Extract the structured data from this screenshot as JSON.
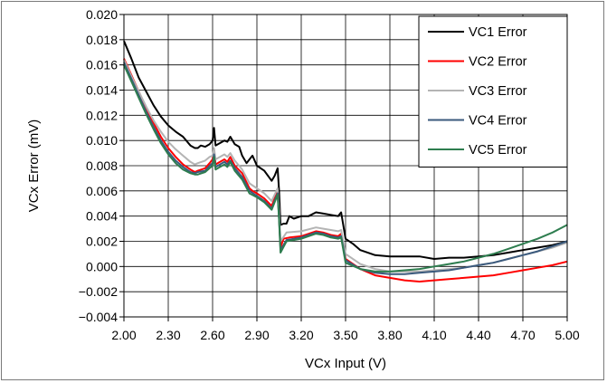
{
  "chart_data": {
    "type": "line",
    "title": "",
    "xlabel": "VCx Input (V)",
    "ylabel": "VCx Error (mV)",
    "xlim": [
      2.0,
      5.0
    ],
    "ylim": [
      -0.004,
      0.02
    ],
    "x_ticks": [
      "2.00",
      "2.30",
      "2.60",
      "2.90",
      "3.20",
      "3.50",
      "3.80",
      "4.10",
      "4.40",
      "4.70",
      "5.00"
    ],
    "y_ticks": [
      "−0.004",
      "−0.002",
      "0.000",
      "0.002",
      "0.004",
      "0.006",
      "0.008",
      "0.010",
      "0.012",
      "0.014",
      "0.016",
      "0.018",
      "0.020"
    ],
    "grid": true,
    "legend_position": "top-right",
    "series": [
      {
        "name": "VC1 Error",
        "color": "#000000",
        "points": [
          [
            2.0,
            0.0179
          ],
          [
            2.05,
            0.0165
          ],
          [
            2.1,
            0.015
          ],
          [
            2.15,
            0.0139
          ],
          [
            2.2,
            0.0128
          ],
          [
            2.25,
            0.0119
          ],
          [
            2.3,
            0.0112
          ],
          [
            2.35,
            0.0107
          ],
          [
            2.4,
            0.0103
          ],
          [
            2.45,
            0.0096
          ],
          [
            2.48,
            0.0094
          ],
          [
            2.5,
            0.0094
          ],
          [
            2.52,
            0.0096
          ],
          [
            2.55,
            0.0095
          ],
          [
            2.58,
            0.0097
          ],
          [
            2.6,
            0.01
          ],
          [
            2.61,
            0.011
          ],
          [
            2.62,
            0.0096
          ],
          [
            2.65,
            0.0098
          ],
          [
            2.68,
            0.01
          ],
          [
            2.7,
            0.0099
          ],
          [
            2.72,
            0.0103
          ],
          [
            2.75,
            0.0097
          ],
          [
            2.78,
            0.0095
          ],
          [
            2.8,
            0.0088
          ],
          [
            2.83,
            0.0082
          ],
          [
            2.85,
            0.0085
          ],
          [
            2.87,
            0.0088
          ],
          [
            2.9,
            0.008
          ],
          [
            2.95,
            0.0076
          ],
          [
            3.0,
            0.0068
          ],
          [
            3.02,
            0.0072
          ],
          [
            3.04,
            0.0078
          ],
          [
            3.05,
            0.006
          ],
          [
            3.06,
            0.0033
          ],
          [
            3.08,
            0.0034
          ],
          [
            3.1,
            0.0034
          ],
          [
            3.12,
            0.004
          ],
          [
            3.15,
            0.0038
          ],
          [
            3.2,
            0.004
          ],
          [
            3.25,
            0.004
          ],
          [
            3.3,
            0.0043
          ],
          [
            3.35,
            0.0042
          ],
          [
            3.4,
            0.0041
          ],
          [
            3.45,
            0.004
          ],
          [
            3.47,
            0.0043
          ],
          [
            3.5,
            0.0022
          ],
          [
            3.55,
            0.0018
          ],
          [
            3.6,
            0.0013
          ],
          [
            3.7,
            0.0009
          ],
          [
            3.8,
            0.0008
          ],
          [
            3.9,
            0.0008
          ],
          [
            4.0,
            0.0008
          ],
          [
            4.1,
            0.0006
          ],
          [
            4.2,
            0.0007
          ],
          [
            4.3,
            0.0007
          ],
          [
            4.4,
            0.0008
          ],
          [
            4.5,
            0.0009
          ],
          [
            4.6,
            0.0011
          ],
          [
            4.7,
            0.0013
          ],
          [
            4.8,
            0.0015
          ],
          [
            4.9,
            0.0017
          ],
          [
            5.0,
            0.002
          ]
        ]
      },
      {
        "name": "VC2 Error",
        "color": "#ff0000",
        "points": [
          [
            2.0,
            0.0165
          ],
          [
            2.05,
            0.0152
          ],
          [
            2.1,
            0.0139
          ],
          [
            2.15,
            0.0126
          ],
          [
            2.2,
            0.0114
          ],
          [
            2.25,
            0.0103
          ],
          [
            2.3,
            0.0094
          ],
          [
            2.35,
            0.0087
          ],
          [
            2.4,
            0.0081
          ],
          [
            2.45,
            0.0077
          ],
          [
            2.48,
            0.0075
          ],
          [
            2.5,
            0.0076
          ],
          [
            2.55,
            0.0078
          ],
          [
            2.58,
            0.0082
          ],
          [
            2.6,
            0.0085
          ],
          [
            2.61,
            0.0093
          ],
          [
            2.62,
            0.0081
          ],
          [
            2.65,
            0.0083
          ],
          [
            2.68,
            0.0085
          ],
          [
            2.7,
            0.0083
          ],
          [
            2.72,
            0.0087
          ],
          [
            2.75,
            0.008
          ],
          [
            2.8,
            0.0074
          ],
          [
            2.85,
            0.0062
          ],
          [
            2.87,
            0.006
          ],
          [
            2.9,
            0.0058
          ],
          [
            2.95,
            0.0054
          ],
          [
            3.0,
            0.0048
          ],
          [
            3.04,
            0.006
          ],
          [
            3.05,
            0.004
          ],
          [
            3.06,
            0.0015
          ],
          [
            3.08,
            0.0022
          ],
          [
            3.12,
            0.0023
          ],
          [
            3.2,
            0.0024
          ],
          [
            3.3,
            0.0028
          ],
          [
            3.35,
            0.0027
          ],
          [
            3.4,
            0.0025
          ],
          [
            3.45,
            0.0024
          ],
          [
            3.47,
            0.0026
          ],
          [
            3.5,
            0.0006
          ],
          [
            3.6,
            -0.0002
          ],
          [
            3.7,
            -0.0007
          ],
          [
            3.8,
            -0.0009
          ],
          [
            3.9,
            -0.0011
          ],
          [
            4.0,
            -0.0012
          ],
          [
            4.1,
            -0.0011
          ],
          [
            4.2,
            -0.001
          ],
          [
            4.3,
            -0.0009
          ],
          [
            4.4,
            -0.0008
          ],
          [
            4.5,
            -0.0007
          ],
          [
            4.6,
            -0.0005
          ],
          [
            4.7,
            -0.0003
          ],
          [
            4.8,
            -0.0001
          ],
          [
            4.9,
            0.0001
          ],
          [
            5.0,
            0.0004
          ]
        ]
      },
      {
        "name": "VC3 Error",
        "color": "#b4b4b4",
        "points": [
          [
            2.0,
            0.0164
          ],
          [
            2.05,
            0.0151
          ],
          [
            2.1,
            0.0139
          ],
          [
            2.15,
            0.0127
          ],
          [
            2.2,
            0.0116
          ],
          [
            2.25,
            0.0107
          ],
          [
            2.3,
            0.0099
          ],
          [
            2.35,
            0.0093
          ],
          [
            2.4,
            0.0088
          ],
          [
            2.45,
            0.0083
          ],
          [
            2.48,
            0.0081
          ],
          [
            2.5,
            0.0082
          ],
          [
            2.55,
            0.0084
          ],
          [
            2.58,
            0.0087
          ],
          [
            2.6,
            0.0088
          ],
          [
            2.61,
            0.0094
          ],
          [
            2.62,
            0.0085
          ],
          [
            2.65,
            0.0087
          ],
          [
            2.68,
            0.0089
          ],
          [
            2.7,
            0.0087
          ],
          [
            2.72,
            0.009
          ],
          [
            2.75,
            0.0084
          ],
          [
            2.8,
            0.0077
          ],
          [
            2.85,
            0.0066
          ],
          [
            2.9,
            0.0062
          ],
          [
            2.95,
            0.0058
          ],
          [
            3.0,
            0.0052
          ],
          [
            3.04,
            0.0062
          ],
          [
            3.05,
            0.0044
          ],
          [
            3.06,
            0.002
          ],
          [
            3.1,
            0.0027
          ],
          [
            3.2,
            0.0028
          ],
          [
            3.3,
            0.0031
          ],
          [
            3.35,
            0.003
          ],
          [
            3.4,
            0.0029
          ],
          [
            3.45,
            0.0028
          ],
          [
            3.47,
            0.0029
          ],
          [
            3.5,
            0.001
          ],
          [
            3.6,
            0.0002
          ],
          [
            3.7,
            -0.0002
          ],
          [
            3.8,
            -0.0004
          ],
          [
            3.9,
            -0.0004
          ],
          [
            4.0,
            -0.0004
          ],
          [
            4.1,
            -0.0003
          ],
          [
            4.2,
            -0.0002
          ],
          [
            4.3,
            -0.0001
          ],
          [
            4.4,
            0.0001
          ],
          [
            4.5,
            0.0003
          ],
          [
            4.6,
            0.0006
          ],
          [
            4.7,
            0.0009
          ],
          [
            4.8,
            0.0012
          ],
          [
            4.9,
            0.0015
          ],
          [
            5.0,
            0.0019
          ]
        ]
      },
      {
        "name": "VC4 Error",
        "color": "#3b5a7d",
        "points": [
          [
            2.0,
            0.0162
          ],
          [
            2.05,
            0.0149
          ],
          [
            2.1,
            0.0136
          ],
          [
            2.15,
            0.0123
          ],
          [
            2.2,
            0.0111
          ],
          [
            2.25,
            0.01
          ],
          [
            2.3,
            0.0091
          ],
          [
            2.35,
            0.0084
          ],
          [
            2.4,
            0.0079
          ],
          [
            2.45,
            0.0075
          ],
          [
            2.48,
            0.0074
          ],
          [
            2.5,
            0.0075
          ],
          [
            2.55,
            0.0076
          ],
          [
            2.58,
            0.008
          ],
          [
            2.6,
            0.0082
          ],
          [
            2.61,
            0.0089
          ],
          [
            2.62,
            0.0079
          ],
          [
            2.65,
            0.0081
          ],
          [
            2.68,
            0.0083
          ],
          [
            2.7,
            0.0081
          ],
          [
            2.72,
            0.0084
          ],
          [
            2.75,
            0.0078
          ],
          [
            2.8,
            0.0071
          ],
          [
            2.85,
            0.006
          ],
          [
            2.9,
            0.0056
          ],
          [
            2.95,
            0.0052
          ],
          [
            3.0,
            0.0046
          ],
          [
            3.04,
            0.0058
          ],
          [
            3.05,
            0.0038
          ],
          [
            3.06,
            0.0013
          ],
          [
            3.1,
            0.0021
          ],
          [
            3.2,
            0.0023
          ],
          [
            3.3,
            0.0027
          ],
          [
            3.35,
            0.0026
          ],
          [
            3.4,
            0.0024
          ],
          [
            3.45,
            0.0023
          ],
          [
            3.47,
            0.0024
          ],
          [
            3.5,
            0.0005
          ],
          [
            3.6,
            -0.0002
          ],
          [
            3.7,
            -0.0005
          ],
          [
            3.8,
            -0.0006
          ],
          [
            3.9,
            -0.0006
          ],
          [
            4.0,
            -0.0005
          ],
          [
            4.1,
            -0.0004
          ],
          [
            4.2,
            -0.0003
          ],
          [
            4.3,
            -0.0001
          ],
          [
            4.4,
            0.0001
          ],
          [
            4.5,
            0.0003
          ],
          [
            4.6,
            0.0006
          ],
          [
            4.7,
            0.0009
          ],
          [
            4.8,
            0.0012
          ],
          [
            4.9,
            0.0016
          ],
          [
            5.0,
            0.002
          ]
        ]
      },
      {
        "name": "VC5 Error",
        "color": "#2e7d4f",
        "points": [
          [
            2.0,
            0.016
          ],
          [
            2.05,
            0.0147
          ],
          [
            2.1,
            0.0134
          ],
          [
            2.15,
            0.0121
          ],
          [
            2.2,
            0.0109
          ],
          [
            2.25,
            0.0098
          ],
          [
            2.3,
            0.0089
          ],
          [
            2.35,
            0.0082
          ],
          [
            2.4,
            0.0077
          ],
          [
            2.45,
            0.0074
          ],
          [
            2.48,
            0.0073
          ],
          [
            2.5,
            0.0073
          ],
          [
            2.55,
            0.0075
          ],
          [
            2.58,
            0.0078
          ],
          [
            2.6,
            0.008
          ],
          [
            2.61,
            0.0087
          ],
          [
            2.62,
            0.0077
          ],
          [
            2.65,
            0.0079
          ],
          [
            2.68,
            0.0081
          ],
          [
            2.7,
            0.0079
          ],
          [
            2.72,
            0.0083
          ],
          [
            2.75,
            0.0076
          ],
          [
            2.8,
            0.0069
          ],
          [
            2.85,
            0.0058
          ],
          [
            2.9,
            0.0055
          ],
          [
            2.95,
            0.0051
          ],
          [
            3.0,
            0.0045
          ],
          [
            3.04,
            0.0057
          ],
          [
            3.05,
            0.0037
          ],
          [
            3.06,
            0.0011
          ],
          [
            3.1,
            0.002
          ],
          [
            3.2,
            0.0022
          ],
          [
            3.3,
            0.0026
          ],
          [
            3.35,
            0.0025
          ],
          [
            3.4,
            0.0023
          ],
          [
            3.45,
            0.0022
          ],
          [
            3.47,
            0.0023
          ],
          [
            3.5,
            0.0003
          ],
          [
            3.6,
            -0.0002
          ],
          [
            3.7,
            -0.0004
          ],
          [
            3.8,
            -0.0004
          ],
          [
            3.9,
            -0.0003
          ],
          [
            4.0,
            -0.0002
          ],
          [
            4.1,
            0.0
          ],
          [
            4.2,
            0.0002
          ],
          [
            4.3,
            0.0004
          ],
          [
            4.4,
            0.0007
          ],
          [
            4.5,
            0.001
          ],
          [
            4.6,
            0.0014
          ],
          [
            4.7,
            0.0018
          ],
          [
            4.8,
            0.0022
          ],
          [
            4.9,
            0.0027
          ],
          [
            5.0,
            0.0033
          ]
        ]
      }
    ]
  }
}
